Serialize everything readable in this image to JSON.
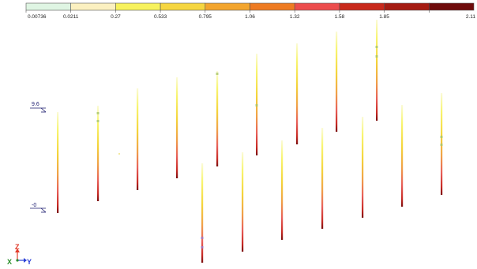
{
  "legend": {
    "colors": [
      "#dff5e3",
      "#fbf0c0",
      "#f7f25c",
      "#f6d640",
      "#f3a52e",
      "#ee7b22",
      "#ec4d4d",
      "#c8291b",
      "#a51c12",
      "#6e0b0b"
    ],
    "labels": [
      "0.00736",
      "0.0211",
      "0.27",
      "0.533",
      "0.795",
      "1.06",
      "1.32",
      "1.58",
      "1.85",
      "2.11"
    ]
  },
  "levels": [
    {
      "label": "9.6"
    },
    {
      "label": "-0"
    }
  ],
  "axes": {
    "z_label": "Z",
    "x_label": "X",
    "y_label": "Y",
    "colors": {
      "z": "#e23b2a",
      "x": "#2a8f2a",
      "y": "#2a3fd6"
    }
  },
  "probes_back_row": [
    {
      "id": "probe-1"
    },
    {
      "id": "probe-2"
    },
    {
      "id": "probe-3"
    },
    {
      "id": "probe-4"
    },
    {
      "id": "probe-5"
    },
    {
      "id": "probe-6"
    },
    {
      "id": "probe-7"
    },
    {
      "id": "probe-8"
    },
    {
      "id": "probe-9"
    }
  ],
  "probes_front_row": [
    {
      "id": "probe-10"
    },
    {
      "id": "probe-11"
    },
    {
      "id": "probe-12"
    },
    {
      "id": "probe-13"
    },
    {
      "id": "probe-14"
    },
    {
      "id": "probe-15"
    },
    {
      "id": "probe-16"
    }
  ]
}
